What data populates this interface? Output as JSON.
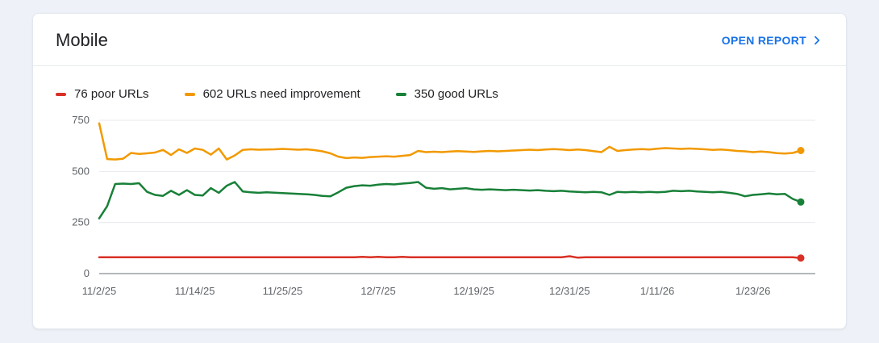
{
  "card": {
    "title": "Mobile",
    "open_report_label": "OPEN REPORT"
  },
  "colors": {
    "accent_blue": "#1a73e8",
    "poor_red": "#d93025",
    "improvement_orange": "#f29900",
    "good_green": "#188038",
    "gridline": "#e8eaed",
    "zero_axis": "#9aa0a6",
    "axis_label": "#5f6368"
  },
  "chart_data": {
    "type": "line",
    "title": "Mobile URL status over time",
    "xlabel": "",
    "ylabel": "",
    "ylim": [
      0,
      750
    ],
    "yticks": [
      0,
      250,
      500,
      750
    ],
    "grid": true,
    "legend_position": "top",
    "x_tick_indices": [
      0,
      12,
      23,
      35,
      47,
      59,
      70,
      82
    ],
    "x_tick_labels": [
      "11/2/25",
      "11/14/25",
      "11/25/25",
      "12/7/25",
      "12/19/25",
      "12/31/25",
      "1/11/26",
      "1/23/26"
    ],
    "series": [
      {
        "name": "76 poor URLs",
        "color": "#d93025",
        "end_value": 76,
        "values": [
          80,
          80,
          80,
          80,
          80,
          80,
          80,
          80,
          80,
          80,
          80,
          80,
          80,
          80,
          80,
          80,
          80,
          80,
          80,
          80,
          80,
          80,
          80,
          80,
          80,
          80,
          80,
          80,
          80,
          80,
          80,
          80,
          80,
          82,
          80,
          82,
          80,
          80,
          82,
          80,
          80,
          80,
          80,
          80,
          80,
          80,
          80,
          80,
          80,
          80,
          80,
          80,
          80,
          80,
          80,
          80,
          80,
          80,
          80,
          85,
          78,
          80,
          80,
          80,
          80,
          80,
          80,
          80,
          80,
          80,
          80,
          80,
          80,
          80,
          80,
          80,
          80,
          80,
          80,
          80,
          80,
          80,
          80,
          80,
          80,
          80,
          80,
          80,
          76
        ]
      },
      {
        "name": "602 URLs need improvement",
        "color": "#f29900",
        "end_value": 602,
        "values": [
          735,
          560,
          558,
          562,
          590,
          585,
          588,
          592,
          605,
          580,
          608,
          590,
          612,
          605,
          582,
          612,
          558,
          578,
          605,
          608,
          606,
          607,
          608,
          610,
          608,
          606,
          608,
          604,
          598,
          588,
          572,
          565,
          568,
          566,
          570,
          572,
          574,
          572,
          576,
          580,
          600,
          594,
          596,
          594,
          597,
          599,
          597,
          595,
          598,
          600,
          598,
          600,
          602,
          604,
          606,
          604,
          607,
          609,
          607,
          604,
          607,
          604,
          599,
          594,
          620,
          600,
          604,
          607,
          609,
          607,
          611,
          614,
          612,
          610,
          612,
          610,
          608,
          605,
          607,
          604,
          600,
          598,
          594,
          597,
          594,
          589,
          587,
          590,
          602
        ]
      },
      {
        "name": "350 good URLs",
        "color": "#188038",
        "end_value": 350,
        "values": [
          270,
          330,
          438,
          440,
          438,
          442,
          400,
          385,
          380,
          405,
          385,
          408,
          385,
          382,
          418,
          395,
          430,
          448,
          402,
          398,
          395,
          398,
          396,
          394,
          392,
          390,
          388,
          385,
          380,
          378,
          398,
          420,
          428,
          432,
          430,
          435,
          438,
          436,
          440,
          443,
          448,
          420,
          415,
          418,
          412,
          415,
          418,
          412,
          410,
          412,
          410,
          408,
          410,
          408,
          406,
          408,
          405,
          403,
          405,
          402,
          400,
          398,
          400,
          398,
          385,
          400,
          398,
          400,
          398,
          400,
          398,
          400,
          405,
          403,
          405,
          402,
          400,
          398,
          400,
          395,
          390,
          378,
          385,
          388,
          392,
          388,
          390,
          365,
          350
        ]
      }
    ]
  }
}
